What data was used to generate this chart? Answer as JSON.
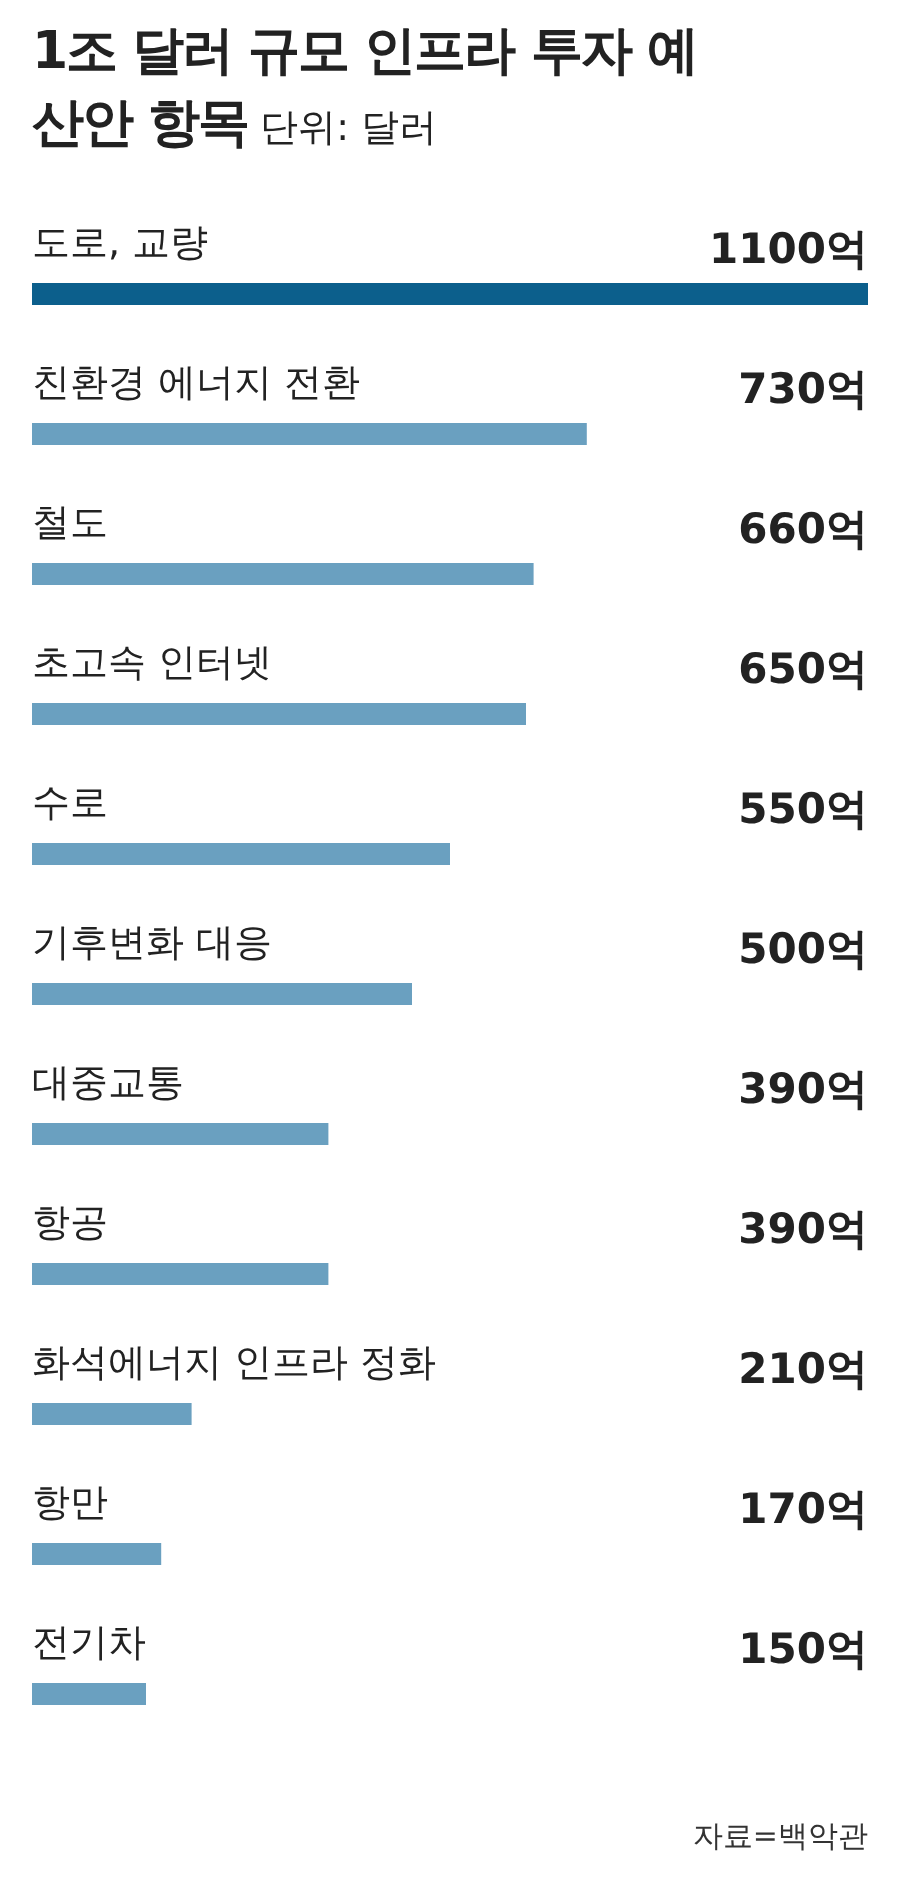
{
  "chart_data": {
    "type": "bar",
    "orientation": "horizontal",
    "title": "1조 달러 규모 인프라 투자 예산안 항목",
    "subtitle": "단위: 달러",
    "categories": [
      "도로, 교량",
      "친환경 에너지 전환",
      "철도",
      "초고속 인터넷",
      "수로",
      "기후변화 대응",
      "대중교통",
      "항공",
      "화석에너지 인프라 정화",
      "항만",
      "전기차"
    ],
    "values": [
      1100,
      730,
      660,
      650,
      550,
      500,
      390,
      390,
      210,
      170,
      150
    ],
    "value_labels": [
      "1100억",
      "730억",
      "660억",
      "650억",
      "550억",
      "500억",
      "390억",
      "390억",
      "210억",
      "170억",
      "150억"
    ],
    "colors": [
      "#0c5f8c",
      "#6aa0c0",
      "#6aa0c0",
      "#6aa0c0",
      "#6aa0c0",
      "#6aa0c0",
      "#6aa0c0",
      "#6aa0c0",
      "#6aa0c0",
      "#6aa0c0",
      "#6aa0c0"
    ],
    "xlim": [
      0,
      1100
    ],
    "tick_labels": "y",
    "grid": false,
    "annotations": [
      "자료=백악관"
    ]
  }
}
